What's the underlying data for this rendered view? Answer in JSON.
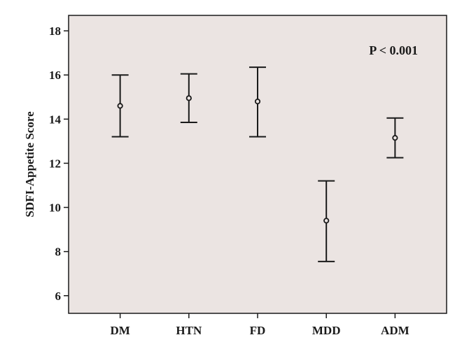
{
  "chart_data": {
    "type": "errorbar",
    "title": "",
    "xlabel": "",
    "ylabel": "SDFI-Appetite Score",
    "ylim": [
      5.2,
      18.7
    ],
    "yticks": [
      6,
      8,
      10,
      12,
      14,
      16,
      18
    ],
    "ytick_labels": [
      "6",
      "8",
      "10",
      "12",
      "14",
      "16",
      "18"
    ],
    "grid": false,
    "categories": [
      "DM",
      "HTN",
      "FD",
      "MDD",
      "ADM"
    ],
    "series": [
      {
        "mean": [
          14.6,
          14.95,
          14.8,
          9.4,
          13.15
        ],
        "lower": [
          13.2,
          13.85,
          13.2,
          7.55,
          12.25
        ],
        "upper": [
          16.0,
          16.05,
          16.35,
          11.2,
          14.05
        ]
      }
    ],
    "annotation": "P < 0.001",
    "colors": {
      "plot_background": "#ebe4e2",
      "ink": "#1a1a1a"
    }
  }
}
